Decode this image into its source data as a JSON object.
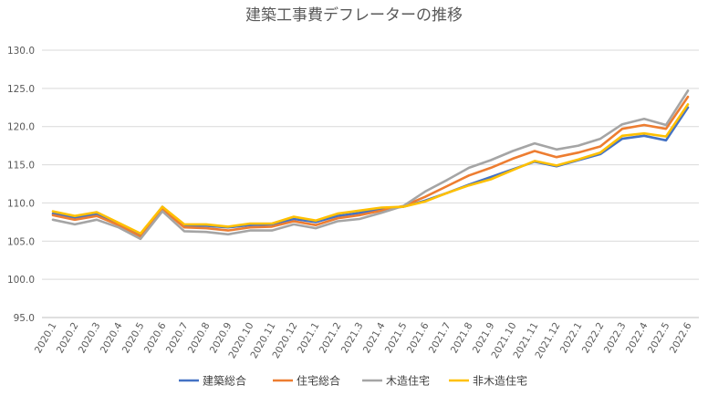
{
  "chart_data": {
    "type": "line",
    "title": "建築工事費デフレーターの推移",
    "xlabel": "",
    "ylabel": "",
    "ylim": [
      95,
      130
    ],
    "yticks": [
      "95.0",
      "100.0",
      "105.0",
      "110.0",
      "115.0",
      "120.0",
      "125.0",
      "130.0"
    ],
    "grid": true,
    "legend_position": "bottom",
    "categories": [
      "2020.1",
      "2020.2",
      "2020.3",
      "2020.4",
      "2020.5",
      "2020.6",
      "2020.7",
      "2020.8",
      "2020.9",
      "2020.10",
      "2020.11",
      "2020.12",
      "2021.1",
      "2021.2",
      "2021.3",
      "2021.4",
      "2021.5",
      "2021.6",
      "2021.7",
      "2021.8",
      "2021.9",
      "2021.10",
      "2021.11",
      "2021.12",
      "2022.1",
      "2022.2",
      "2022.3",
      "2022.4",
      "2022.5",
      "2022.6"
    ],
    "series": [
      {
        "name": "建築総合",
        "color": "#4472C4",
        "values": [
          108.6,
          108.1,
          108.5,
          107.3,
          105.8,
          109.5,
          107.0,
          107.0,
          106.8,
          107.1,
          107.2,
          107.9,
          107.5,
          108.3,
          108.7,
          109.2,
          109.5,
          110.3,
          111.3,
          112.4,
          113.4,
          114.4,
          115.4,
          114.8,
          115.6,
          116.4,
          118.4,
          118.8,
          118.2,
          122.5
        ]
      },
      {
        "name": "住宅総合",
        "color": "#ED7D31",
        "values": [
          108.4,
          107.8,
          108.3,
          107.1,
          105.6,
          109.2,
          106.8,
          106.7,
          106.4,
          106.8,
          106.9,
          107.6,
          107.1,
          108.0,
          108.4,
          109.0,
          109.6,
          110.8,
          112.2,
          113.6,
          114.6,
          115.8,
          116.8,
          116.0,
          116.6,
          117.4,
          119.7,
          120.2,
          119.7,
          123.9
        ]
      },
      {
        "name": "木造住宅",
        "color": "#A5A5A5",
        "values": [
          107.8,
          107.2,
          107.8,
          106.8,
          105.3,
          108.9,
          106.3,
          106.2,
          105.9,
          106.4,
          106.4,
          107.2,
          106.7,
          107.6,
          107.9,
          108.7,
          109.6,
          111.5,
          113.0,
          114.6,
          115.6,
          116.8,
          117.8,
          117.0,
          117.5,
          118.4,
          120.3,
          121.0,
          120.2,
          124.7
        ]
      },
      {
        "name": "非木造住宅",
        "color": "#FFC000",
        "values": [
          108.9,
          108.3,
          108.8,
          107.4,
          106.0,
          109.5,
          107.2,
          107.2,
          106.9,
          107.3,
          107.3,
          108.2,
          107.7,
          108.6,
          109.0,
          109.4,
          109.5,
          110.2,
          111.3,
          112.3,
          113.1,
          114.3,
          115.5,
          114.9,
          115.7,
          116.6,
          118.8,
          119.1,
          118.7,
          122.9
        ]
      }
    ]
  }
}
